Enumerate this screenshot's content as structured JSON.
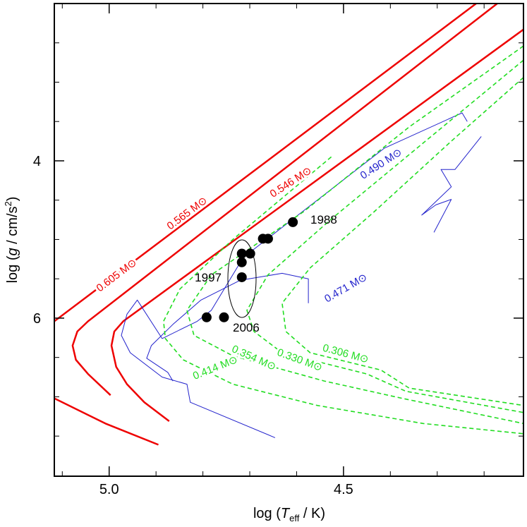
{
  "chart_data": {
    "type": "line",
    "xlabel": {
      "parts": [
        "log (",
        "T",
        "eff",
        " / K)"
      ]
    },
    "ylabel": {
      "parts": [
        "log (",
        "g",
        " / cm/s",
        "2",
        ")"
      ]
    },
    "xlim": [
      5.117,
      4.116
    ],
    "ylim": [
      2.0,
      8.01
    ],
    "xticks": [
      {
        "value": 5.0,
        "label": "5.0"
      },
      {
        "value": 4.5,
        "label": "4.5"
      }
    ],
    "x_minor_ticks": [
      5.1,
      4.9,
      4.8,
      4.7,
      4.6,
      4.4,
      4.3,
      4.2
    ],
    "yticks": [
      4,
      6
    ],
    "y_minor_ticks": [
      2.5,
      3,
      3.5,
      4.5,
      5,
      5.5,
      6.5,
      7,
      7.5
    ],
    "series": [
      {
        "name": "0.605 M⊙",
        "color": "#ee0000",
        "style": "solid",
        "line_width": 2.5,
        "x": [
          4.217,
          5.117,
          null,
          5.117,
          5.008,
          4.895
        ],
        "values": [
          2.0,
          6.04,
          null,
          7.02,
          7.34,
          7.61
        ]
      },
      {
        "name": "0.565 M⊙",
        "color": "#ee0000",
        "style": "solid",
        "line_width": 2.5,
        "x": [
          4.172,
          5.045,
          5.068,
          5.078,
          5.071,
          5.045,
          4.997
        ],
        "values": [
          2.0,
          6.04,
          6.17,
          6.35,
          6.53,
          6.71,
          6.98
        ]
      },
      {
        "name": "0.546 M⊙",
        "color": "#ee0000",
        "style": "solid",
        "line_width": 2.5,
        "x": [
          4.116,
          4.97,
          4.989,
          4.995,
          4.985,
          4.962,
          4.925,
          4.872
        ],
        "values": [
          2.33,
          6.04,
          6.17,
          6.35,
          6.62,
          6.84,
          7.07,
          7.31
        ]
      },
      {
        "name": "0.490 M⊙",
        "color": "#2222cc",
        "style": "solid",
        "line_width": 1,
        "x": [
          4.236,
          4.247,
          4.413,
          4.608,
          4.714,
          4.782,
          4.812,
          4.887,
          4.94,
          4.962,
          4.974,
          4.955,
          4.887,
          4.834,
          4.827,
          4.646
        ],
        "values": [
          3.5,
          3.39,
          3.84,
          4.74,
          5.23,
          5.9,
          6.04,
          6.26,
          5.77,
          5.95,
          6.22,
          6.44,
          6.75,
          6.84,
          7.07,
          7.52
        ]
      },
      {
        "name": "0.471 M⊙",
        "color": "#2222cc",
        "style": "solid",
        "line_width": 1,
        "x": [
          4.575,
          4.575,
          4.631,
          4.721,
          4.804,
          4.864,
          4.91,
          4.92,
          4.875,
          4.864,
          null,
          4.206,
          4.262,
          4.292,
          4.27,
          4.333,
          4.303,
          4.27,
          4.307
        ],
        "values": [
          5.81,
          5.5,
          5.43,
          5.52,
          5.77,
          6.08,
          6.35,
          6.51,
          6.69,
          6.8,
          null,
          3.69,
          4.11,
          4.11,
          4.33,
          4.69,
          4.56,
          4.49,
          4.91
        ]
      },
      {
        "name": "0.414 M⊙",
        "color": "#22dd22",
        "style": "dashed",
        "line_width": 1.6,
        "x": [
          4.526,
          4.736,
          4.849,
          4.884,
          4.88,
          4.842,
          4.736,
          4.556,
          4.33,
          4.116
        ],
        "values": [
          3.95,
          5.0,
          5.63,
          6.04,
          6.26,
          6.53,
          6.84,
          7.11,
          7.34,
          7.47
        ]
      },
      {
        "name": "0.354 M⊙",
        "color": "#22dd22",
        "style": "dashed",
        "line_width": 1.6,
        "x": [
          4.116,
          4.36,
          4.586,
          4.782,
          4.834,
          4.819,
          4.736,
          4.541,
          4.375,
          4.116
        ],
        "values": [
          2.54,
          3.57,
          4.65,
          5.45,
          5.9,
          6.22,
          6.48,
          6.8,
          7.02,
          7.34
        ]
      },
      {
        "name": "0.330 M⊙",
        "color": "#22dd22",
        "style": "dashed",
        "line_width": 1.6,
        "x": [
          4.116,
          4.315,
          4.526,
          4.661,
          4.706,
          4.691,
          4.631,
          4.45,
          4.367,
          4.116
        ],
        "values": [
          2.72,
          3.7,
          4.74,
          5.45,
          5.9,
          6.17,
          6.44,
          6.71,
          6.93,
          7.2
        ]
      },
      {
        "name": "0.306 M⊙",
        "color": "#22dd22",
        "style": "dashed",
        "line_width": 1.6,
        "x": [
          4.116,
          4.27,
          4.435,
          4.571,
          4.631,
          4.623,
          4.571,
          4.42,
          4.36,
          4.116
        ],
        "values": [
          2.94,
          3.75,
          4.65,
          5.36,
          5.81,
          6.17,
          6.44,
          6.66,
          6.89,
          7.11
        ]
      }
    ],
    "observations": {
      "color": "#000000",
      "x": [
        4.608,
        4.661,
        4.672,
        4.699,
        4.717,
        4.717,
        4.717,
        4.792,
        4.755
      ],
      "y": [
        4.78,
        4.99,
        4.99,
        5.18,
        5.18,
        5.29,
        5.48,
        5.99,
        5.99
      ]
    },
    "annotations": [
      "1988",
      "1997",
      "2006"
    ]
  }
}
